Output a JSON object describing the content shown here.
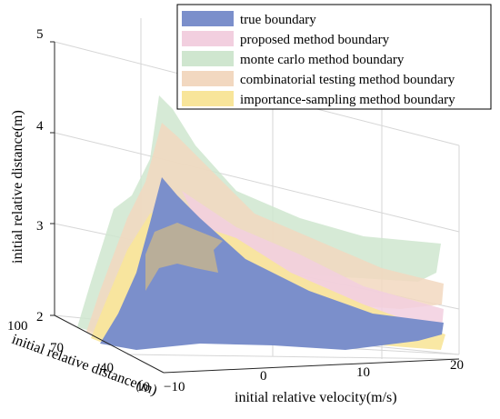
{
  "chart_data": {
    "type": "surface3d",
    "title": "",
    "xlabel": "initial relative velocity(m/s)",
    "ylabel": "initial relative distance(m)",
    "zlabel": "initial relative distance(m)",
    "xlim": [
      -10,
      20
    ],
    "ylim": [
      10,
      100
    ],
    "zlim": [
      2,
      5
    ],
    "x_ticks": [
      "−10",
      "0",
      "10",
      "20"
    ],
    "y_ticks": [
      "10",
      "40",
      "70",
      "100"
    ],
    "z_ticks": [
      "2",
      "3",
      "4",
      "5"
    ],
    "grid": true,
    "legend_position": "top-right",
    "series": [
      {
        "name": "true boundary",
        "color": "#7b8fcb"
      },
      {
        "name": "proposed method boundary",
        "color": "#f2cfdf"
      },
      {
        "name": "monte carlo  method boundary",
        "color": "#cfe6cf"
      },
      {
        "name": "combinatorial testing method boundary",
        "color": "#f2d8c0"
      },
      {
        "name": "importance-sampling method boundary",
        "color": "#f8e59a"
      }
    ]
  }
}
